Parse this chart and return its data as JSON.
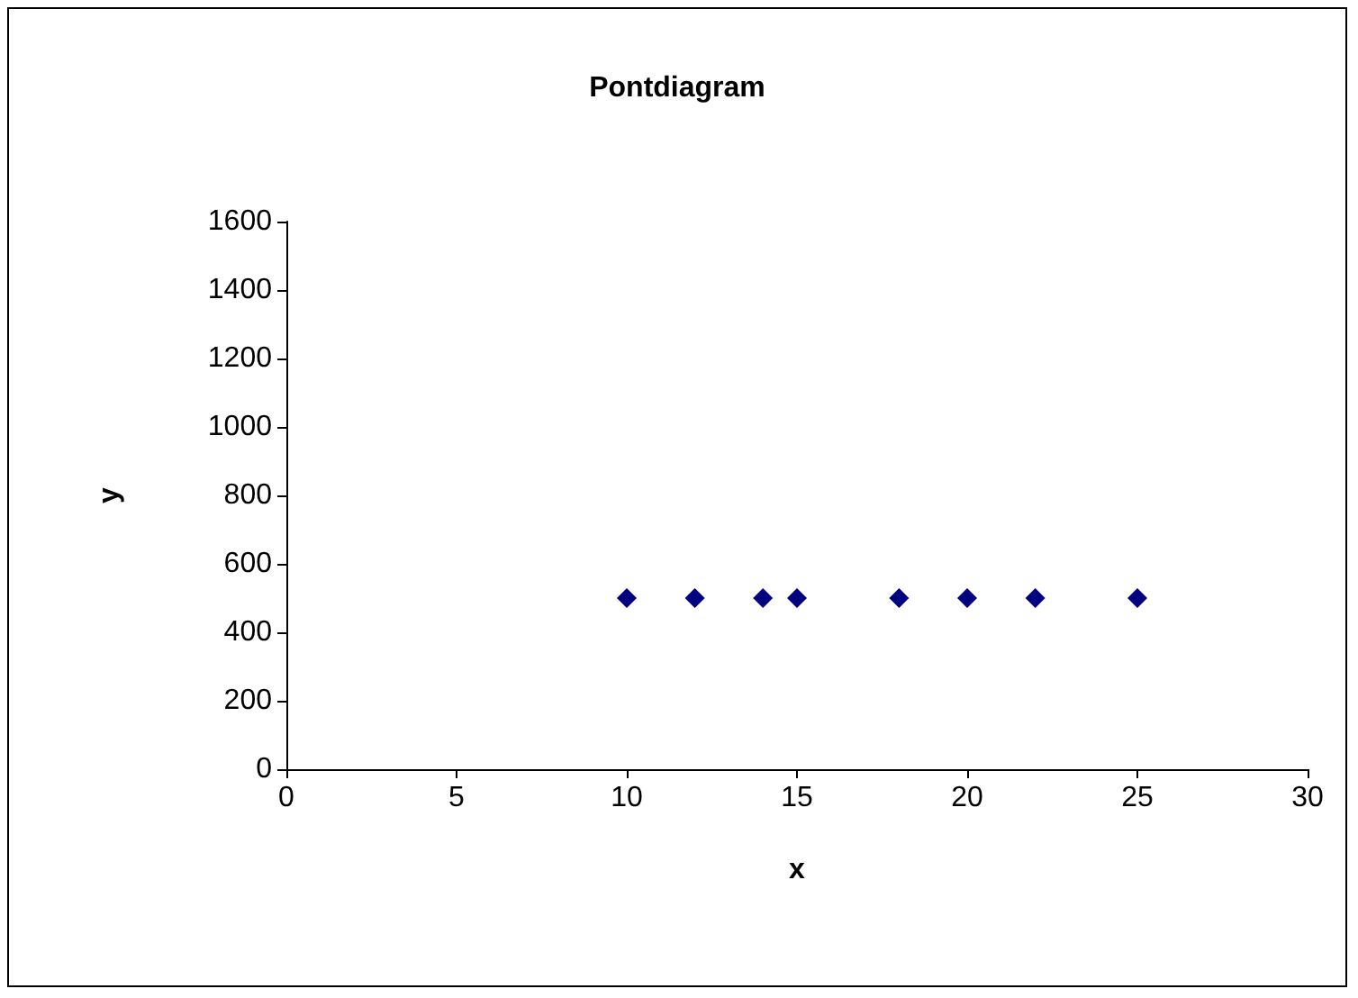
{
  "chart_data": {
    "type": "scatter",
    "title": "Pontdiagram",
    "xlabel": "x",
    "ylabel": "y",
    "x": [
      10,
      12,
      14,
      15,
      18,
      20,
      22,
      25
    ],
    "series": [
      {
        "color": "#000080",
        "values": [
          500,
          500,
          500,
          500,
          500,
          500,
          500,
          500
        ]
      }
    ],
    "xlim": [
      0,
      30
    ],
    "xticks": [
      0,
      5,
      10,
      15,
      20,
      25,
      30
    ],
    "ylim": [
      0,
      1600
    ],
    "yticks": [
      0,
      200,
      400,
      600,
      800,
      1000,
      1200,
      1400,
      1600
    ],
    "grid": false,
    "marker": "diamond"
  }
}
